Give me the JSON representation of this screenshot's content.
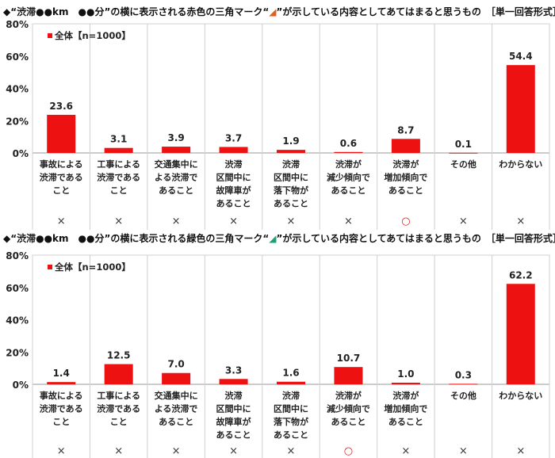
{
  "chart_data": [
    {
      "type": "bar",
      "title_prefix": "◆“渋滞●●km　●●分”の横に表示される赤色の三角マーク“",
      "title_mark_color": "#e0601a",
      "title_suffix": "”が示している内容としてあてはまると思うもの　［単一回答形式］",
      "legend": "全体【n=1000】",
      "legend_position": "top-left",
      "ylim": [
        0,
        80
      ],
      "yticks": [
        "0%",
        "20%",
        "40%",
        "60%",
        "80%"
      ],
      "categories": [
        "事故による\n渋滞である\nこと",
        "工事による\n渋滞である\nこと",
        "交通集中に\nよる渋滞で\nあること",
        "渋滞\n区間中に\n故障車が\nあること",
        "渋滞\n区間中に\n落下物が\nあること",
        "渋滞が\n減少傾向で\nあること",
        "渋滞が\n増加傾向で\nあること",
        "その他",
        "わからない"
      ],
      "series": [
        {
          "name": "全体【n=1000】",
          "values": [
            23.6,
            3.1,
            3.9,
            3.7,
            1.9,
            0.6,
            8.7,
            0.1,
            54.4
          ],
          "color": "#ee1111"
        }
      ],
      "marks": [
        "×",
        "×",
        "×",
        "×",
        "×",
        "×",
        "○",
        "×",
        "×"
      ]
    },
    {
      "type": "bar",
      "title_prefix": "◆“渋滞●●km　●●分”の横に表示される緑色の三角マーク“",
      "title_mark_color": "#1aa07a",
      "title_suffix": "”が示している内容としてあてはまると思うもの　［単一回答形式］",
      "legend": "全体【n=1000】",
      "legend_position": "top-left",
      "ylim": [
        0,
        80
      ],
      "yticks": [
        "0%",
        "20%",
        "40%",
        "60%",
        "80%"
      ],
      "categories": [
        "事故による\n渋滞である\nこと",
        "工事による\n渋滞である\nこと",
        "交通集中に\nよる渋滞で\nあること",
        "渋滞\n区間中に\n故障車が\nあること",
        "渋滞\n区間中に\n落下物が\nあること",
        "渋滞が\n減少傾向で\nあること",
        "渋滞が\n増加傾向で\nあること",
        "その他",
        "わからない"
      ],
      "series": [
        {
          "name": "全体【n=1000】",
          "values": [
            1.4,
            12.5,
            7.0,
            3.3,
            1.6,
            10.7,
            1.0,
            0.3,
            62.2
          ],
          "color": "#ee1111"
        }
      ],
      "marks": [
        "×",
        "×",
        "×",
        "×",
        "×",
        "○",
        "×",
        "×",
        "×"
      ]
    }
  ]
}
